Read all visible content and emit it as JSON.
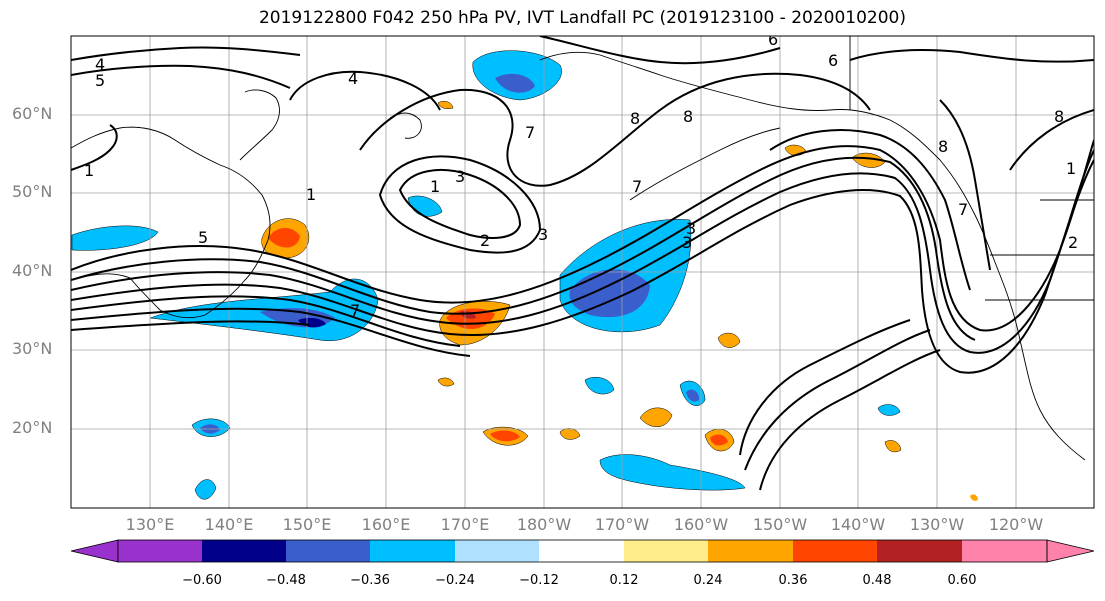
{
  "title": "2019122800 F042 250 hPa PV, IVT Landfall PC (2019123100 - 2020010200)",
  "lat_labels": [
    "60°N",
    "50°N",
    "40°N",
    "30°N",
    "20°N"
  ],
  "lon_labels": [
    "130°E",
    "140°E",
    "150°E",
    "160°E",
    "170°E",
    "180°W",
    "170°W",
    "160°W",
    "150°W",
    "140°W",
    "130°W",
    "120°W"
  ],
  "contour_labels": [
    "4",
    "5",
    "4",
    "5",
    "3",
    "1",
    "2",
    "3",
    "7",
    "8",
    "6",
    "8",
    "6",
    "7",
    "1",
    "3",
    "2",
    "8",
    "8",
    "1",
    "1",
    "3",
    "7",
    "7"
  ],
  "colorbar": {
    "ticks": [
      "−0.60",
      "−0.48",
      "−0.36",
      "−0.24",
      "−0.12",
      "0.12",
      "0.24",
      "0.36",
      "0.48",
      "0.60"
    ],
    "colors": [
      "#9932cc",
      "#00008b",
      "#3a5fcd",
      "#00bfff",
      "#b0e2ff",
      "#ffffff",
      "#ffec8b",
      "#ffa500",
      "#ff4500",
      "#b22222",
      "#ff82ab"
    ]
  }
}
